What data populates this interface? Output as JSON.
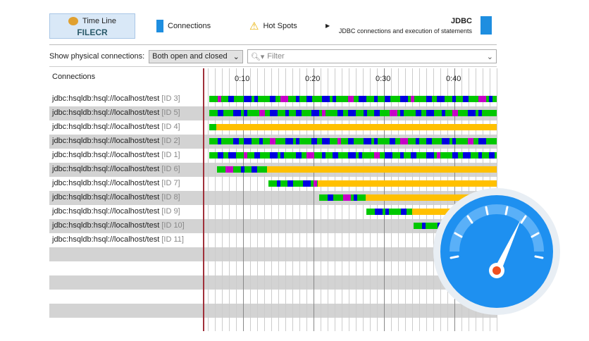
{
  "tabs": [
    {
      "label": "Time Line",
      "icon": "timeline-icon",
      "active": true
    },
    {
      "label": "Connections",
      "icon": "connections-icon"
    },
    {
      "label": "Hot Spots",
      "icon": "warning-icon"
    }
  ],
  "watermark": "FILECR",
  "header": {
    "title": "JDBC",
    "subtitle": "JDBC connections and execution of statements"
  },
  "toolbar": {
    "show_label": "Show physical connections:",
    "show_value": "Both open and closed",
    "filter_placeholder": "Filter"
  },
  "list_header": "Connections",
  "timeline": {
    "ticks": [
      "0:10",
      "0:20",
      "0:30",
      "0:40"
    ],
    "tick_seconds": [
      10,
      20,
      30,
      40
    ],
    "marker_seconds": 4.3,
    "end_seconds": 46
  },
  "colors": {
    "active": "#00c800",
    "statement": "#0000e0",
    "other": "#c800c8",
    "idle": "#ffc000",
    "marker": "#a0303a"
  },
  "connections": [
    {
      "url": "jdbc:hsqldb:hsql://localhost/test",
      "id": "[ID 3]",
      "start": 5.2,
      "active_end": 46,
      "end": 46
    },
    {
      "url": "jdbc:hsqldb:hsql://localhost/test",
      "id": "[ID 5]",
      "start": 5.2,
      "active_end": 46,
      "end": 46
    },
    {
      "url": "jdbc:hsqldb:hsql://localhost/test",
      "id": "[ID 4]",
      "start": 5.2,
      "active_end": 6.2,
      "end": 46
    },
    {
      "url": "jdbc:hsqldb:hsql://localhost/test",
      "id": "[ID 2]",
      "start": 5.2,
      "active_end": 46,
      "end": 46
    },
    {
      "url": "jdbc:hsqldb:hsql://localhost/test",
      "id": "[ID 1]",
      "start": 5.2,
      "active_end": 46,
      "end": 46
    },
    {
      "url": "jdbc:hsqldb:hsql://localhost/test",
      "id": "[ID 6]",
      "start": 6.3,
      "active_end": 13.4,
      "end": 46
    },
    {
      "url": "jdbc:hsqldb:hsql://localhost/test",
      "id": "[ID 7]",
      "start": 13.6,
      "active_end": 20.6,
      "end": 46
    },
    {
      "url": "jdbc:hsqldb:hsql://localhost/test",
      "id": "[ID 8]",
      "start": 20.8,
      "active_end": 27.4,
      "end": 46
    },
    {
      "url": "jdbc:hsqldb:hsql://localhost/test",
      "id": "[ID 9]",
      "start": 27.5,
      "active_end": 34,
      "end": 46
    },
    {
      "url": "jdbc:hsqldb:hsql://localhost/test",
      "id": "[ID 10]",
      "start": 34.2,
      "active_end": 40,
      "end": 46
    },
    {
      "url": "jdbc:hsqldb:hsql://localhost/test",
      "id": "[ID 11]",
      "start": null,
      "active_end": null,
      "end": null
    }
  ]
}
